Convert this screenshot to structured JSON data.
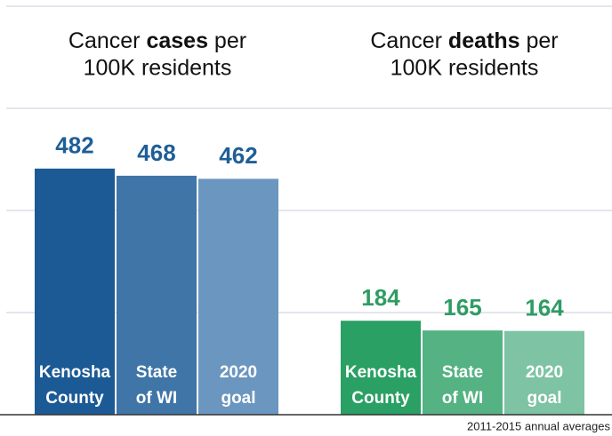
{
  "chart_data": [
    {
      "type": "bar",
      "title_lines": [
        "Cancer cases per",
        "100K residents"
      ],
      "title_emphasis": "cases",
      "categories": [
        "Kenosha County",
        "State of WI",
        "2020 goal"
      ],
      "values": [
        482,
        468,
        462
      ],
      "colors": [
        "#1b5a95",
        "#3f75a7",
        "#6b96bf"
      ],
      "label_color": "#1f5e97",
      "ylim": [
        0,
        800
      ],
      "yticks": [
        0,
        200,
        400,
        600,
        800
      ],
      "grid": true
    },
    {
      "type": "bar",
      "title_lines": [
        "Cancer deaths per",
        "100K residents"
      ],
      "title_emphasis": "deaths",
      "categories": [
        "Kenosha County",
        "State of WI",
        "2020 goal"
      ],
      "values": [
        184,
        165,
        164
      ],
      "colors": [
        "#2aa064",
        "#55b283",
        "#7ec3a3"
      ],
      "label_color": "#2e9c64",
      "ylim": [
        0,
        800
      ],
      "yticks": [
        0,
        200,
        400,
        600,
        800
      ],
      "grid": true
    }
  ],
  "footnote": "2011-2015 annual averages"
}
